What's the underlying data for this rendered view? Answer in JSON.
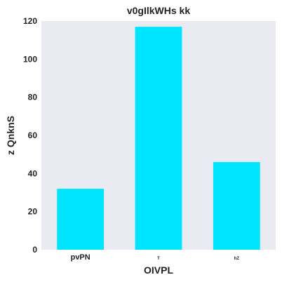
{
  "chart_data": {
    "type": "bar",
    "title": "v0gIlkWHs kk",
    "xlabel": "OIVPL",
    "ylabel": "z QnknS",
    "categories": [
      "pvPN",
      "T",
      "hZ"
    ],
    "values": [
      32,
      117,
      46
    ],
    "ylim": [
      0,
      120
    ],
    "yticks": [
      0,
      20,
      40,
      60,
      80,
      100,
      120
    ],
    "grid": false,
    "colors": {
      "bar": "#00e5ff",
      "plot_background": "#eaeaf2"
    }
  }
}
